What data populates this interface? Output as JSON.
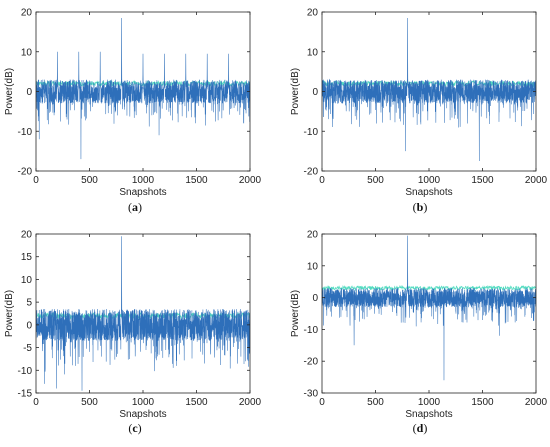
{
  "chart_data": [
    {
      "id": "a",
      "type": "line",
      "panel_label": "(a)",
      "xlabel": "Snapshots",
      "ylabel": "Power(dB)",
      "xlim": [
        0,
        2000
      ],
      "ylim": [
        -20,
        20
      ],
      "xticks": [
        0,
        500,
        1000,
        1500,
        2000
      ],
      "yticks": [
        -20,
        -10,
        0,
        10,
        20
      ],
      "series": [
        {
          "color": "#2e6fba",
          "noise_floor_db": 0,
          "noise_spread_db": 3,
          "peaks": [
            {
              "x": 800,
              "y": 18.5
            },
            {
              "x": 200,
              "y": 10
            },
            {
              "x": 400,
              "y": 10
            },
            {
              "x": 600,
              "y": 10
            },
            {
              "x": 1000,
              "y": 9.5
            },
            {
              "x": 1200,
              "y": 9.5
            },
            {
              "x": 1400,
              "y": 9.5
            },
            {
              "x": 1600,
              "y": 9.5
            },
            {
              "x": 1800,
              "y": 9.5
            }
          ],
          "dips": [
            {
              "x": 420,
              "y": -17
            },
            {
              "x": 30,
              "y": -12
            },
            {
              "x": 1150,
              "y": -11
            }
          ]
        }
      ],
      "threshold": {
        "color": "#37d6b6",
        "y": 2
      }
    },
    {
      "id": "b",
      "type": "line",
      "panel_label": "(b)",
      "xlabel": "Snapshots",
      "ylabel": "Power(dB)",
      "xlim": [
        0,
        2000
      ],
      "ylim": [
        -20,
        20
      ],
      "xticks": [
        0,
        500,
        1000,
        1500,
        2000
      ],
      "yticks": [
        -20,
        -10,
        0,
        10,
        20
      ],
      "series": [
        {
          "color": "#2e6fba",
          "noise_floor_db": 0,
          "noise_spread_db": 3,
          "peaks": [
            {
              "x": 800,
              "y": 18.5
            }
          ],
          "dips": [
            {
              "x": 1470,
              "y": -17.5
            },
            {
              "x": 780,
              "y": -15
            }
          ]
        }
      ],
      "threshold": {
        "color": "#37d6b6",
        "y": 2
      }
    },
    {
      "id": "c",
      "type": "line",
      "panel_label": "(c)",
      "xlabel": "Snapshots",
      "ylabel": "Power(dB)",
      "xlim": [
        0,
        2000
      ],
      "ylim": [
        -15,
        20
      ],
      "xticks": [
        0,
        500,
        1000,
        1500,
        2000
      ],
      "yticks": [
        -15,
        -10,
        -5,
        0,
        5,
        10,
        15,
        20
      ],
      "series": [
        {
          "color": "#2e6fba",
          "noise_floor_db": 0,
          "noise_spread_db": 3.5,
          "peaks": [
            {
              "x": 800,
              "y": 19.5
            }
          ],
          "dips": [
            {
              "x": 430,
              "y": -14.5
            },
            {
              "x": 190,
              "y": -14
            },
            {
              "x": 80,
              "y": -13
            }
          ]
        }
      ],
      "threshold": {
        "color": "#37d6b6",
        "y": 2
      }
    },
    {
      "id": "d",
      "type": "line",
      "panel_label": "(d)",
      "xlabel": "Snapshots",
      "ylabel": "Power(dB)",
      "xlim": [
        0,
        2000
      ],
      "ylim": [
        -30,
        20
      ],
      "xticks": [
        0,
        500,
        1000,
        1500,
        2000
      ],
      "yticks": [
        -30,
        -20,
        -10,
        0,
        10,
        20
      ],
      "series": [
        {
          "color": "#2e6fba",
          "noise_floor_db": 0,
          "noise_spread_db": 3,
          "peaks": [
            {
              "x": 800,
              "y": 19.5
            }
          ],
          "dips": [
            {
              "x": 1140,
              "y": -26
            },
            {
              "x": 300,
              "y": -15
            },
            {
              "x": 1660,
              "y": -12
            }
          ]
        }
      ],
      "threshold": {
        "color": "#37d6b6",
        "y": 3
      }
    }
  ]
}
